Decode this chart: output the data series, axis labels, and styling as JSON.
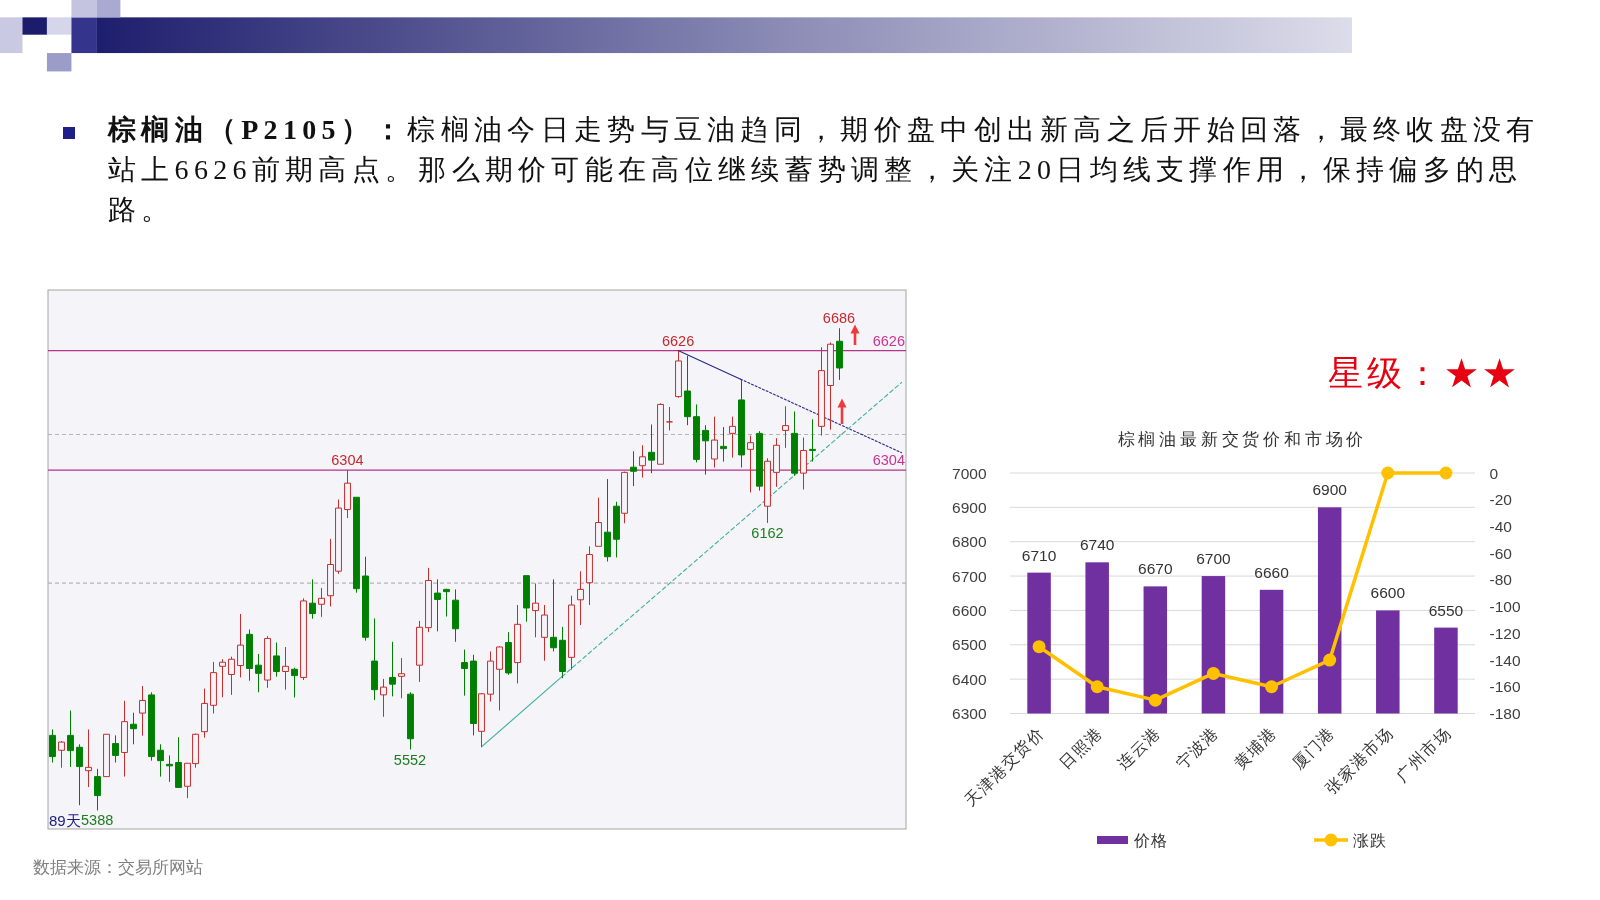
{
  "chart_data": [
    {
      "type": "candlestick",
      "title": "**棕榈油（P2105）：**棕榈油今日走势与豆油趋同，期价盘中创出新高之后开始回落，最终收盘没有站上6626前期高点。那么期价可能在高位继续蓄势调整，关注20日均线支撑作用，保持偏多的思路。",
      "categories": [
        null,
        null,
        null,
        null,
        null,
        null,
        null,
        null,
        null,
        null,
        null,
        null,
        null,
        null,
        null,
        null,
        null,
        null,
        null,
        null,
        null,
        null,
        null,
        null,
        null,
        null,
        null,
        null,
        null,
        null,
        null,
        null,
        null,
        null,
        null,
        null,
        null,
        null,
        null,
        null,
        null,
        null,
        null,
        null,
        null,
        null,
        null,
        null,
        null,
        null,
        null,
        null,
        null,
        null,
        null,
        null,
        null,
        null,
        null,
        null,
        null,
        null,
        null,
        null,
        null,
        null,
        null,
        null,
        null,
        null,
        null,
        null,
        null,
        null,
        null,
        null,
        null,
        null,
        null,
        null,
        null,
        null,
        null,
        null,
        null,
        null,
        null,
        null,
        null,
        null,
        null,
        null,
        null,
        null,
        null,
        null
      ],
      "ohlc": [
        [
          5590,
          5606,
          5517,
          5533
        ],
        [
          5550,
          5575,
          5503,
          5572
        ],
        [
          5590,
          5657,
          5505,
          5549
        ],
        [
          5558,
          5566,
          5402,
          5506
        ],
        [
          5495,
          5606,
          5451,
          5504
        ],
        [
          5479,
          5500,
          5388,
          5428
        ],
        [
          5479,
          5593,
          5479,
          5593
        ],
        [
          5568,
          5590,
          5517,
          5536
        ],
        [
          5544,
          5683,
          5479,
          5627
        ],
        [
          5620,
          5651,
          5566,
          5608
        ],
        [
          5650,
          5723,
          5589,
          5684
        ],
        [
          5699,
          5706,
          5522,
          5533
        ],
        [
          5550,
          5566,
          5479,
          5522
        ],
        [
          5512,
          5536,
          5465,
          5508
        ],
        [
          5517,
          5585,
          5450,
          5450
        ],
        [
          5453,
          5515,
          5421,
          5515
        ],
        [
          5514,
          5595,
          5503,
          5593
        ],
        [
          5600,
          5716,
          5584,
          5676
        ],
        [
          5671,
          5788,
          5649,
          5759
        ],
        [
          5776,
          5795,
          5693,
          5787
        ],
        [
          5754,
          5802,
          5699,
          5795
        ],
        [
          5778,
          5917,
          5746,
          5833
        ],
        [
          5862,
          5875,
          5737,
          5770
        ],
        [
          5779,
          5809,
          5706,
          5757
        ],
        [
          5739,
          5857,
          5718,
          5851
        ],
        [
          5804,
          5840,
          5748,
          5762
        ],
        [
          5762,
          5828,
          5713,
          5776
        ],
        [
          5768,
          5772,
          5692,
          5751
        ],
        [
          5746,
          5959,
          5739,
          5952
        ],
        [
          5946,
          6010,
          5904,
          5918
        ],
        [
          5943,
          5987,
          5909,
          5959
        ],
        [
          5966,
          6119,
          5937,
          6050
        ],
        [
          6032,
          6225,
          6025,
          6202
        ],
        [
          6198,
          6304,
          6175,
          6269
        ],
        [
          6231,
          6231,
          5974,
          5985
        ],
        [
          6019,
          6071,
          5845,
          5854
        ],
        [
          5790,
          5905,
          5685,
          5713
        ],
        [
          5699,
          5742,
          5640,
          5720
        ],
        [
          5746,
          5842,
          5695,
          5728
        ],
        [
          5749,
          5798,
          5690,
          5756
        ],
        [
          5701,
          5706,
          5552,
          5581
        ],
        [
          5779,
          5898,
          5734,
          5881
        ],
        [
          5880,
          6041,
          5868,
          6007
        ],
        [
          5973,
          6010,
          5870,
          5956
        ],
        [
          5983,
          5985,
          5910,
          5977
        ],
        [
          5954,
          5983,
          5842,
          5877
        ],
        [
          5786,
          5821,
          5697,
          5770
        ],
        [
          5790,
          5807,
          5590,
          5622
        ],
        [
          5601,
          5704,
          5559,
          5702
        ],
        [
          5701,
          5816,
          5681,
          5790
        ],
        [
          5768,
          5830,
          5657,
          5828
        ],
        [
          5840,
          5868,
          5753,
          5758
        ],
        [
          5786,
          5941,
          5730,
          5889
        ],
        [
          6020,
          6020,
          5896,
          5933
        ],
        [
          5926,
          5999,
          5854,
          5946
        ],
        [
          5854,
          5941,
          5791,
          5914
        ],
        [
          5854,
          6010,
          5816,
          5826
        ],
        [
          5846,
          5882,
          5744,
          5762
        ],
        [
          5800,
          5966,
          5767,
          5941
        ],
        [
          5955,
          6032,
          5887,
          5983
        ],
        [
          6001,
          6099,
          5941,
          6077
        ],
        [
          6099,
          6230,
          6099,
          6163
        ],
        [
          6137,
          6280,
          6058,
          6071
        ],
        [
          6207,
          6219,
          6069,
          6118
        ],
        [
          6188,
          6300,
          6161,
          6298
        ],
        [
          6312,
          6355,
          6261,
          6301
        ],
        [
          6316,
          6371,
          6284,
          6340
        ],
        [
          6352,
          6427,
          6296,
          6331
        ],
        [
          6320,
          6484,
          6320,
          6481
        ],
        [
          6434,
          6474,
          6411,
          6434
        ],
        [
          6502,
          6626,
          6499,
          6598
        ],
        [
          6517,
          6612,
          6425,
          6448
        ],
        [
          6448,
          6481,
          6325,
          6333
        ],
        [
          6411,
          6425,
          6292,
          6383
        ],
        [
          6334,
          6448,
          6311,
          6385
        ],
        [
          6368,
          6420,
          6327,
          6362
        ],
        [
          6403,
          6448,
          6338,
          6422
        ],
        [
          6493,
          6549,
          6311,
          6345
        ],
        [
          6360,
          6397,
          6244,
          6378
        ],
        [
          6403,
          6409,
          6249,
          6261
        ],
        [
          6207,
          6336,
          6162,
          6328
        ],
        [
          6298,
          6390,
          6259,
          6371
        ],
        [
          6411,
          6476,
          6364,
          6424
        ],
        [
          6403,
          6462,
          6289,
          6296
        ],
        [
          6296,
          6392,
          6252,
          6357
        ],
        [
          6360,
          6441,
          6327,
          6357
        ],
        [
          6422,
          6635,
          6397,
          6572
        ],
        [
          6532,
          6648,
          6413,
          6643
        ],
        [
          6651,
          6686,
          6547,
          6579
        ],
        null,
        null,
        null,
        null,
        null,
        null,
        null
      ],
      "colors": [
        "#008000",
        "#c62d2d",
        "#008000",
        "#008000",
        "#c62d2d",
        "#008000",
        "#c62d2d",
        "#008000",
        "#c62d2d",
        "#008000",
        "#c62d2d",
        "#008000",
        "#008000",
        "#008000",
        "#008000",
        "#c62d2d",
        "#c62d2d",
        "#c62d2d",
        "#c62d2d",
        "#c62d2d",
        "#c62d2d",
        "#c62d2d",
        "#008000",
        "#008000",
        "#c62d2d",
        "#008000",
        "#c62d2d",
        "#008000",
        "#c62d2d",
        "#008000",
        "#c62d2d",
        "#c62d2d",
        "#c62d2d",
        "#c62d2d",
        "#008000",
        "#008000",
        "#008000",
        "#c62d2d",
        "#008000",
        "#c62d2d",
        "#008000",
        "#c62d2d",
        "#c62d2d",
        "#008000",
        "#008000",
        "#008000",
        "#008000",
        "#008000",
        "#c62d2d",
        "#c62d2d",
        "#c62d2d",
        "#008000",
        "#c62d2d",
        "#008000",
        "#c62d2d",
        "#c62d2d",
        "#008000",
        "#008000",
        "#c62d2d",
        "#c62d2d",
        "#c62d2d",
        "#c62d2d",
        "#008000",
        "#008000",
        "#c62d2d",
        "#008000",
        "#c62d2d",
        "#008000",
        "#c62d2d",
        "#c62d2d",
        "#c62d2d",
        "#008000",
        "#008000",
        "#008000",
        "#c62d2d",
        "#008000",
        "#c62d2d",
        "#008000",
        "#c62d2d",
        "#008000",
        "#c62d2d",
        "#c62d2d",
        "#c62d2d",
        "#008000",
        "#c62d2d",
        "#008000",
        "#c62d2d",
        "#c62d2d",
        "#008000",
        null,
        null,
        null,
        null,
        null,
        null,
        null
      ],
      "series": [
        {
          "type": "line",
          "color": "#26268a",
          "line_style": "solid",
          "values": [
            null,
            null,
            null,
            null,
            null,
            null,
            null,
            null,
            null,
            null,
            null,
            null,
            null,
            null,
            null,
            null,
            null,
            null,
            null,
            null,
            null,
            null,
            null,
            null,
            null,
            null,
            null,
            null,
            null,
            null,
            null,
            null,
            null,
            null,
            null,
            null,
            null,
            null,
            null,
            null,
            null,
            null,
            null,
            null,
            null,
            null,
            null,
            null,
            null,
            null,
            null,
            null,
            null,
            null,
            null,
            null,
            null,
            null,
            null,
            null,
            null,
            null,
            null,
            null,
            null,
            null,
            null,
            null,
            null,
            null,
            6626,
            null,
            null,
            null,
            null,
            null,
            null,
            6549,
            null,
            null,
            null,
            null,
            null,
            null,
            null,
            null,
            null,
            null,
            null,
            null,
            null,
            null,
            null,
            null,
            null,
            null
          ]
        },
        {
          "type": "line",
          "color": "#26268a",
          "line_style": "dotted",
          "values": [
            null,
            null,
            null,
            null,
            null,
            null,
            null,
            null,
            null,
            null,
            null,
            null,
            null,
            null,
            null,
            null,
            null,
            null,
            null,
            null,
            null,
            null,
            null,
            null,
            null,
            null,
            null,
            null,
            null,
            null,
            null,
            null,
            null,
            null,
            null,
            null,
            null,
            null,
            null,
            null,
            null,
            null,
            null,
            null,
            null,
            null,
            null,
            null,
            null,
            null,
            null,
            null,
            null,
            null,
            null,
            null,
            null,
            null,
            null,
            null,
            null,
            null,
            null,
            null,
            null,
            null,
            null,
            null,
            null,
            null,
            null,
            null,
            null,
            null,
            null,
            null,
            null,
            6549,
            null,
            null,
            null,
            null,
            null,
            null,
            null,
            null,
            null,
            null,
            null,
            null,
            null,
            null,
            null,
            null,
            null,
            6351
          ]
        },
        {
          "type": "line",
          "color": "#3fb0a0",
          "line_style": "solid",
          "values": [
            null,
            null,
            null,
            null,
            null,
            null,
            null,
            null,
            null,
            null,
            null,
            null,
            null,
            null,
            null,
            null,
            null,
            null,
            null,
            null,
            null,
            null,
            null,
            null,
            null,
            null,
            null,
            null,
            null,
            null,
            null,
            null,
            null,
            null,
            null,
            null,
            null,
            null,
            null,
            null,
            null,
            null,
            null,
            null,
            null,
            null,
            null,
            null,
            5559,
            null,
            null,
            null,
            null,
            null,
            null,
            null,
            null,
            5748,
            null,
            null,
            null,
            null,
            null,
            null,
            null,
            null,
            null,
            null,
            null,
            null,
            null,
            null,
            null,
            null,
            null,
            null,
            null,
            null,
            null,
            null,
            null,
            null,
            null,
            null,
            null,
            null,
            null,
            null,
            null,
            null,
            null,
            null,
            null,
            null,
            null,
            null
          ]
        },
        {
          "type": "line",
          "color": "#3fb0a0",
          "line_style": "dashed",
          "values": [
            null,
            null,
            null,
            null,
            null,
            null,
            null,
            null,
            null,
            null,
            null,
            null,
            null,
            null,
            null,
            null,
            null,
            null,
            null,
            null,
            null,
            null,
            null,
            null,
            null,
            null,
            null,
            null,
            null,
            null,
            null,
            null,
            null,
            null,
            null,
            null,
            null,
            null,
            null,
            null,
            null,
            null,
            null,
            null,
            null,
            null,
            null,
            null,
            null,
            null,
            null,
            null,
            null,
            null,
            null,
            null,
            null,
            5748,
            null,
            null,
            null,
            null,
            null,
            null,
            null,
            null,
            null,
            null,
            null,
            null,
            null,
            null,
            null,
            null,
            null,
            null,
            null,
            null,
            null,
            null,
            null,
            null,
            null,
            null,
            null,
            null,
            null,
            null,
            null,
            null,
            null,
            null,
            null,
            null,
            null,
            6540
          ]
        }
      ],
      "ylim": [
        5338,
        6789
      ],
      "yticks": [
        6304,
        6626
      ],
      "ref_lines": [
        {
          "axis": "y",
          "value": 6626,
          "color": "#b5338a"
        },
        {
          "axis": "y",
          "value": 6304,
          "color": "#b5338a"
        },
        {
          "axis": "y",
          "value": 6400,
          "color": "#b4b4b4",
          "line_style": "dashed"
        },
        {
          "axis": "y",
          "value": 6000,
          "color": "#b4b4b4",
          "line_style": "dashed"
        }
      ],
      "annotations": [
        {
          "text": "6626",
          "y": 6626
        },
        {
          "text": "6304",
          "y": 6304
        },
        {
          "text": "6686",
          "y": 6686
        },
        {
          "text": "6162",
          "y": 6162
        },
        {
          "text": "5552",
          "y": 5552
        },
        {
          "text": "5388",
          "y": 5388
        },
        "89天",
        "数据来源：交易所网站"
      ]
    },
    {
      "type": "bar",
      "title": "棕榈油最新交货价和市场价",
      "categories": [
        "天津港交货价",
        "日照港",
        "连云港",
        "宁波港",
        "黄埔港",
        "厦门港",
        "张家港市场",
        "广州市场"
      ],
      "series": [
        {
          "name": "价格",
          "type": "bar",
          "color": "#7030a0",
          "values": [
            6710,
            6740,
            6670,
            6700,
            6660,
            6900,
            6600,
            6550
          ],
          "value_labels": [
            "6710",
            "6740",
            "6670",
            "6700",
            "6660",
            "6900",
            "6600",
            "6550"
          ]
        },
        {
          "name": "涨跌",
          "type": "line",
          "axis": "y2",
          "color": "#ffc000",
          "marker": "circle",
          "values": [
            -130,
            -160,
            -170,
            -150,
            -160,
            -140,
            0,
            0
          ]
        }
      ],
      "ylim": [
        6300,
        7000
      ],
      "yticks": [
        6300,
        6400,
        6500,
        6600,
        6700,
        6800,
        6900,
        7000
      ],
      "y2lim": [
        -180,
        0
      ],
      "y2ticks": [
        -180,
        -160,
        -140,
        -120,
        -100,
        -80,
        -60,
        -40,
        -20,
        0
      ],
      "grid": "y",
      "legend": "bottom",
      "annotations": [
        "星级：★★"
      ]
    }
  ]
}
